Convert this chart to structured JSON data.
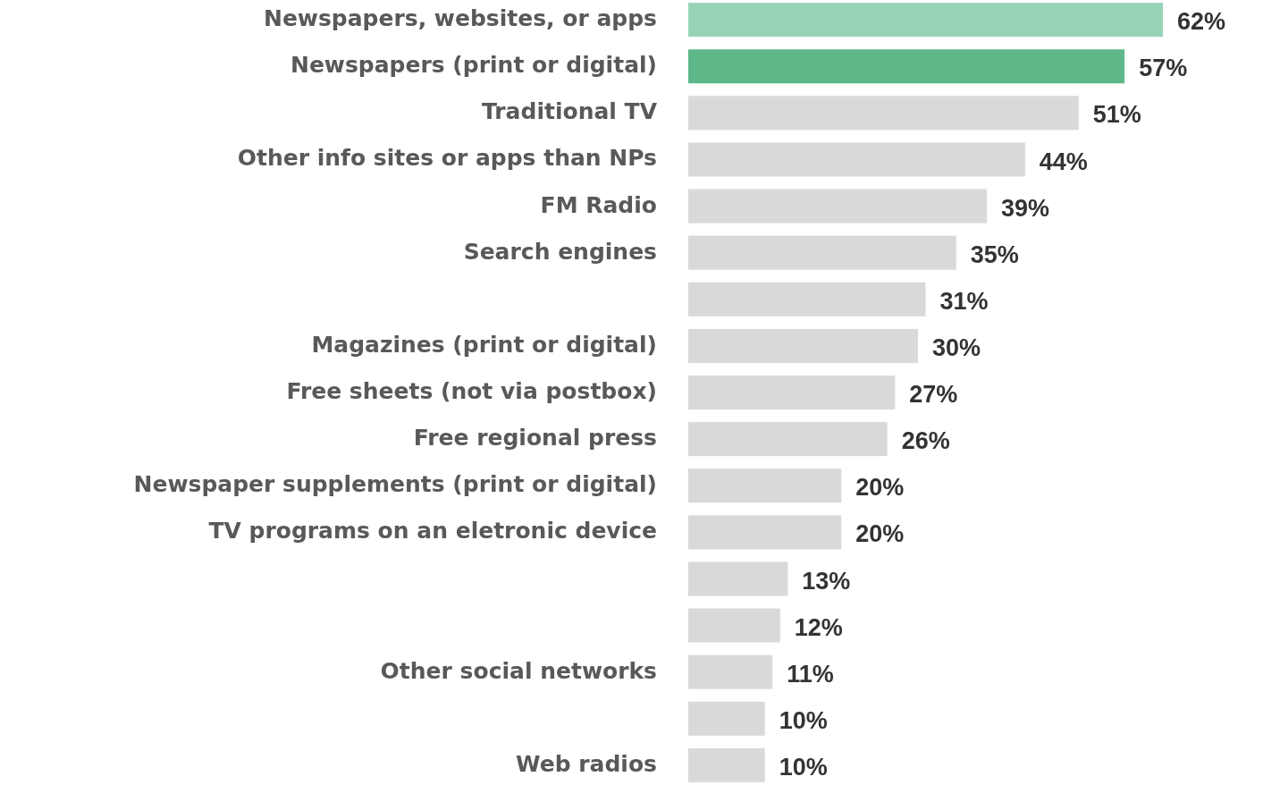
{
  "chart_data": {
    "type": "bar",
    "orientation": "horizontal",
    "categories": [
      "Newspapers, websites, or apps",
      "Newspapers (print or digital)",
      "Traditional TV",
      "Other info sites or apps than NPs",
      "FM Radio",
      "Search engines",
      null,
      "Magazines (print or digital)",
      "Free sheets (not via postbox)",
      "Free regional press",
      "Newspaper supplements (print or digital)",
      "TV programs on an eletronic device",
      null,
      null,
      "Other social networks",
      null,
      "Web radios"
    ],
    "values": [
      62,
      57,
      51,
      44,
      39,
      35,
      31,
      30,
      27,
      26,
      20,
      20,
      13,
      12,
      11,
      10,
      10
    ],
    "value_labels": [
      "62%",
      "57%",
      "51%",
      "44%",
      "39%",
      "35%",
      "31%",
      "30%",
      "27%",
      "26%",
      "20%",
      "20%",
      "13%",
      "12%",
      "11%",
      "10%",
      "10%"
    ],
    "colors": [
      "#99d3b7",
      "#5fb88a",
      "#d9d9d9",
      "#d9d9d9",
      "#d9d9d9",
      "#d9d9d9",
      "#d9d9d9",
      "#d9d9d9",
      "#d9d9d9",
      "#d9d9d9",
      "#d9d9d9",
      "#d9d9d9",
      "#d9d9d9",
      "#d9d9d9",
      "#d9d9d9",
      "#d9d9d9",
      "#d9d9d9"
    ]
  }
}
